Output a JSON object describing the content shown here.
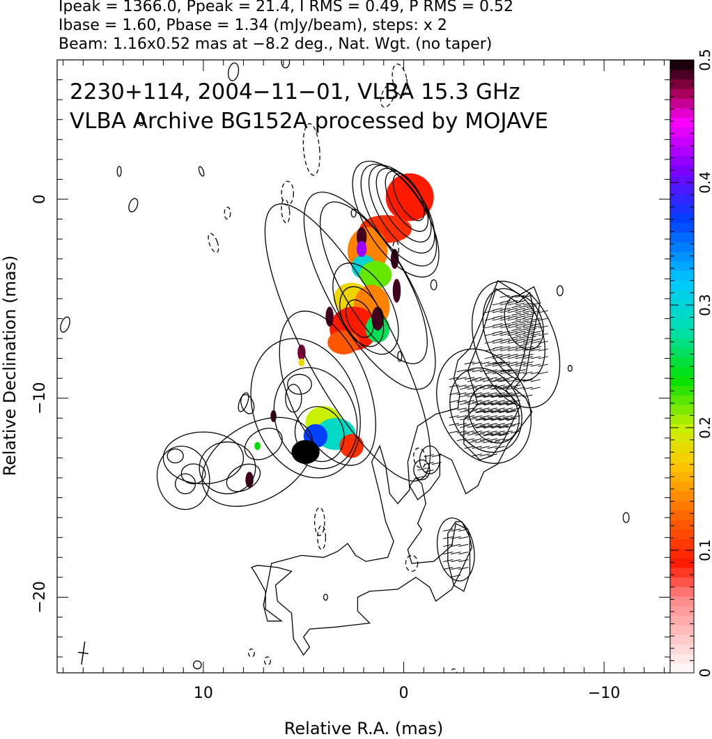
{
  "header": {
    "line1": "Ipeak = 1366.0, Ppeak = 21.4, I RMS = 0.49, P RMS = 0.52",
    "line2": "Ibase = 1.60, Pbase = 1.34 (mJy/beam), steps: x 2",
    "line3": "Beam: 1.16x0.52 mas at −8.2 deg., Nat. Wgt. (no taper)"
  },
  "chart_data": {
    "type": "heatmap",
    "title": "2230+114, 2004−11−01, VLBA 15.3 GHz",
    "subtitle": "VLBA Archive BG152A processed by MOJAVE",
    "xlabel": "Relative R.A. (mas)",
    "ylabel": "Relative Declination (mas)",
    "xlim": [
      17.3,
      -13.3
    ],
    "ylim": [
      -23.8,
      7.0
    ],
    "xticks": [
      {
        "v": 10,
        "label": "10"
      },
      {
        "v": 0,
        "label": "0"
      },
      {
        "v": -10,
        "label": "−10"
      }
    ],
    "yticks": [
      {
        "v": 0,
        "label": "0"
      },
      {
        "v": -10,
        "label": "−10"
      },
      {
        "v": -20,
        "label": "−20"
      }
    ],
    "colorbar": {
      "range": [
        0,
        0.5
      ],
      "ticks": [
        {
          "v": 0,
          "label": "0"
        },
        {
          "v": 0.1,
          "label": "0.1"
        },
        {
          "v": 0.2,
          "label": "0.2"
        },
        {
          "v": 0.3,
          "label": "0.3"
        },
        {
          "v": 0.4,
          "label": "0.4"
        },
        {
          "v": 0.5,
          "label": "0.5"
        }
      ],
      "stops": [
        {
          "v": 0.0,
          "color": "#ffffff"
        },
        {
          "v": 0.06,
          "color": "#ff8a8a"
        },
        {
          "v": 0.09,
          "color": "#ff1a00"
        },
        {
          "v": 0.13,
          "color": "#ff6a00"
        },
        {
          "v": 0.17,
          "color": "#ffc800"
        },
        {
          "v": 0.2,
          "color": "#c8f000"
        },
        {
          "v": 0.24,
          "color": "#00e000"
        },
        {
          "v": 0.28,
          "color": "#00e0b0"
        },
        {
          "v": 0.32,
          "color": "#00c8ff"
        },
        {
          "v": 0.37,
          "color": "#0040ff"
        },
        {
          "v": 0.41,
          "color": "#7a00ff"
        },
        {
          "v": 0.45,
          "color": "#ff00ff"
        },
        {
          "v": 0.475,
          "color": "#a0004a"
        },
        {
          "v": 0.5,
          "color": "#000000"
        }
      ]
    },
    "polarization_patches": [
      {
        "x": -0.3,
        "y": 0.1,
        "rx": 1.2,
        "ry": 1.2,
        "frac": 0.09
      },
      {
        "x": 0.9,
        "y": -1.5,
        "rx": 1.3,
        "ry": 0.7,
        "frac": 0.1
      },
      {
        "x": 1.8,
        "y": -2.6,
        "rx": 1.0,
        "ry": 1.2,
        "frac": 0.14
      },
      {
        "x": 2.0,
        "y": -3.4,
        "rx": 0.6,
        "ry": 0.6,
        "frac": 0.3
      },
      {
        "x": 1.4,
        "y": -3.8,
        "rx": 0.8,
        "ry": 0.7,
        "frac": 0.22
      },
      {
        "x": 2.6,
        "y": -5.0,
        "rx": 0.9,
        "ry": 0.8,
        "frac": 0.18
      },
      {
        "x": 1.6,
        "y": -5.4,
        "rx": 0.9,
        "ry": 1.1,
        "frac": 0.14
      },
      {
        "x": 2.5,
        "y": -6.5,
        "rx": 1.2,
        "ry": 1.1,
        "frac": 0.09
      },
      {
        "x": 1.3,
        "y": -6.5,
        "rx": 0.6,
        "ry": 0.7,
        "frac": 0.26
      },
      {
        "x": 3.0,
        "y": -7.2,
        "rx": 0.8,
        "ry": 0.6,
        "frac": 0.12
      },
      {
        "x": 4.0,
        "y": -11.2,
        "rx": 0.9,
        "ry": 0.8,
        "frac": 0.2
      },
      {
        "x": 3.4,
        "y": -11.8,
        "rx": 1.0,
        "ry": 0.8,
        "frac": 0.29
      },
      {
        "x": 4.4,
        "y": -11.9,
        "rx": 0.6,
        "ry": 0.6,
        "frac": 0.37
      },
      {
        "x": 4.9,
        "y": -12.7,
        "rx": 0.7,
        "ry": 0.6,
        "frac": 0.5
      },
      {
        "x": 2.6,
        "y": -12.4,
        "rx": 0.6,
        "ry": 0.6,
        "frac": 0.1
      },
      {
        "x": 2.1,
        "y": -1.9,
        "rx": 0.25,
        "ry": 0.5,
        "frac": 0.49
      },
      {
        "x": 2.1,
        "y": -2.5,
        "rx": 0.25,
        "ry": 0.4,
        "frac": 0.42
      },
      {
        "x": 1.3,
        "y": -6.0,
        "rx": 0.3,
        "ry": 0.6,
        "frac": 0.49
      },
      {
        "x": 0.35,
        "y": -4.6,
        "rx": 0.2,
        "ry": 0.6,
        "frac": 0.49
      },
      {
        "x": 0.45,
        "y": -3.0,
        "rx": 0.2,
        "ry": 0.5,
        "frac": 0.49
      },
      {
        "x": 3.7,
        "y": -5.9,
        "rx": 0.2,
        "ry": 0.5,
        "frac": 0.49
      },
      {
        "x": 5.1,
        "y": -7.7,
        "rx": 0.2,
        "ry": 0.4,
        "frac": 0.48
      },
      {
        "x": 6.5,
        "y": -10.9,
        "rx": 0.15,
        "ry": 0.3,
        "frac": 0.49
      },
      {
        "x": 7.7,
        "y": -14.1,
        "rx": 0.2,
        "ry": 0.4,
        "frac": 0.49
      },
      {
        "x": 7.3,
        "y": -12.4,
        "rx": 0.15,
        "ry": 0.2,
        "frac": 0.24
      },
      {
        "x": 5.1,
        "y": -8.2,
        "rx": 0.15,
        "ry": 0.2,
        "frac": 0.18
      }
    ],
    "jet_contours": [
      {
        "x": -0.25,
        "y": 0.1,
        "rx": 0.55,
        "ry": 1.3,
        "rot": -28,
        "level": 9
      },
      {
        "x": -0.15,
        "y": -0.1,
        "rx": 0.75,
        "ry": 1.7,
        "rot": -30,
        "level": 8
      },
      {
        "x": 0.0,
        "y": -0.3,
        "rx": 0.95,
        "ry": 2.1,
        "rot": -32,
        "level": 7
      },
      {
        "x": 0.1,
        "y": -0.5,
        "rx": 1.15,
        "ry": 2.5,
        "rot": -32,
        "level": 6
      },
      {
        "x": 0.25,
        "y": -0.8,
        "rx": 1.3,
        "ry": 2.9,
        "rot": -32,
        "level": 5
      },
      {
        "x": 0.4,
        "y": -1.0,
        "rx": 1.5,
        "ry": 3.3,
        "rot": -32,
        "level": 4
      },
      {
        "x": 2.2,
        "y": -6.0,
        "rx": 0.6,
        "ry": 1.0,
        "rot": -25,
        "level": 5
      },
      {
        "x": 2.1,
        "y": -5.9,
        "rx": 0.95,
        "ry": 1.6,
        "rot": -25,
        "level": 4
      },
      {
        "x": 1.9,
        "y": -5.5,
        "rx": 1.3,
        "ry": 2.5,
        "rot": -28,
        "level": 3
      },
      {
        "x": 1.5,
        "y": -4.2,
        "rx": 1.6,
        "ry": 4.6,
        "rot": -30,
        "level": 3
      },
      {
        "x": 1.7,
        "y": -4.6,
        "rx": 2.0,
        "ry": 5.6,
        "rot": -30,
        "level": 2
      },
      {
        "x": 2.8,
        "y": -7.2,
        "rx": 2.2,
        "ry": 7.8,
        "rot": -28,
        "level": 1
      },
      {
        "x": 3.8,
        "y": -9.5,
        "rx": 2.0,
        "ry": 4.1,
        "rot": -22,
        "level": 1
      },
      {
        "x": 4.4,
        "y": -11.0,
        "rx": 2.0,
        "ry": 2.6,
        "rot": -20,
        "level": 2
      },
      {
        "x": 4.2,
        "y": -11.8,
        "rx": 1.2,
        "ry": 1.4,
        "rot": -20,
        "level": 3
      },
      {
        "x": 4.9,
        "y": -10.5,
        "rx": 2.6,
        "ry": 3.6,
        "rot": -20,
        "level": 1
      },
      {
        "x": 5.2,
        "y": -9.3,
        "rx": 0.6,
        "ry": 0.5,
        "rot": 0,
        "level": 1
      },
      {
        "x": 5.5,
        "y": -10.0,
        "rx": 0.4,
        "ry": 0.7,
        "rot": 0,
        "level": 2
      },
      {
        "x": 7.3,
        "y": -13.2,
        "rx": 3.0,
        "ry": 1.9,
        "rot": -30,
        "level": 1
      },
      {
        "x": 8.8,
        "y": -13.5,
        "rx": 1.4,
        "ry": 1.3,
        "rot": 0,
        "level": 2
      },
      {
        "x": 10.0,
        "y": -13.0,
        "rx": 2.0,
        "ry": 1.3,
        "rot": 0,
        "level": 1
      },
      {
        "x": 10.5,
        "y": -13.8,
        "rx": 0.6,
        "ry": 0.5,
        "rot": 0,
        "level": 2
      },
      {
        "x": 11.0,
        "y": -14.0,
        "rx": 1.3,
        "ry": 1.6,
        "rot": -10,
        "level": 1
      },
      {
        "x": 10.9,
        "y": -14.3,
        "rx": 0.5,
        "ry": 0.5,
        "rot": 0,
        "level": 2
      },
      {
        "x": 11.4,
        "y": -12.9,
        "rx": 0.4,
        "ry": 0.35,
        "rot": 0,
        "level": 2
      },
      {
        "x": 8.0,
        "y": -14.0,
        "rx": 0.9,
        "ry": 0.6,
        "rot": -30,
        "level": 2
      },
      {
        "x": 7.0,
        "y": -12.3,
        "rx": 1.0,
        "ry": 0.7,
        "rot": -30,
        "level": 1
      },
      {
        "x": 7.8,
        "y": -10.3,
        "rx": 0.3,
        "ry": 0.5,
        "rot": -20,
        "level": 1
      }
    ],
    "polvec_regions": [
      {
        "x": -6.0,
        "y": -6.2,
        "rx": 0.9,
        "ry": 1.4,
        "rot": -20,
        "vec": [
          -5.4,
          -7.0
        ]
      },
      {
        "x": -5.5,
        "y": -6.8,
        "rx": 1.4,
        "ry": 2.4,
        "rot": -20,
        "vec": [
          -5.4,
          -7.0
        ]
      },
      {
        "x": -5.6,
        "y": -7.3,
        "rx": 2.0,
        "ry": 3.3,
        "rot": -20,
        "vec": [
          -5.3,
          -6.5
        ]
      },
      {
        "x": -4.5,
        "y": -10.8,
        "rx": 1.2,
        "ry": 1.5,
        "rot": -25,
        "vec": [
          -3.9,
          -11.7
        ]
      },
      {
        "x": -4.1,
        "y": -10.6,
        "rx": 1.7,
        "ry": 2.2,
        "rot": -25,
        "vec": [
          -3.9,
          -11.7
        ]
      },
      {
        "x": -4.0,
        "y": -10.4,
        "rx": 2.2,
        "ry": 3.0,
        "rot": -25,
        "vec": [
          -3.7,
          -10.2
        ]
      },
      {
        "x": -2.6,
        "y": -17.6,
        "rx": 0.9,
        "ry": 1.6,
        "rot": -10,
        "vec": [
          -2.2,
          -18.0
        ]
      },
      {
        "x": -1.3,
        "y": -13.1,
        "rx": 0.5,
        "ry": 0.7,
        "rot": 0,
        "vec": [
          -0.8,
          -12.7
        ]
      },
      {
        "x": -0.9,
        "y": -13.6,
        "rx": 0.4,
        "ry": 0.5,
        "rot": 0,
        "vec": [
          -0.9,
          -13.8
        ]
      }
    ],
    "outer_contour": "-4.7,-4.1 -5.8,-4.8 -6.5,-4.4 -6.8,-5.2 -6.3,-7.6 -6.1,-8.8 -5.5,-9.5 -6.1,-10.0 -6.4,-10.7 -5.2,-12.3 -4.7,-13.3 -4.0,-13.7 -3.7,-14.4 -3.1,-14.8 -2.4,-13.1 -1.8,-12.8 -1.8,-13.9 -1.3,-14.6 -0.7,-15.1 -0.3,-14.4 -0.6,-14.0 -0.9,-14.3 -1.1,-15.3 -0.7,-16.3 -0.9,-16.6 -0.2,-17.6 -0.4,-18.3 -1.5,-18.2 -2.4,-17.4 -2.6,-16.3 -3.2,-16.6 -3.4,-17.5 -2.9,-18.6 -2.4,-19.6 -1.6,-20.2 -1.3,-19.5 -0.6,-19.0 0.3,-19.6 1.7,-19.7 2.3,-20.0 2.3,-20.7 1.7,-21.3 3.4,-21.5 4.7,-21.6 5.0,-22.0 4.7,-22.5 5.0,-22.9 5.5,-22.1 5.6,-20.8 6.3,-20.2 6.4,-19.4 5.6,-18.7 6.3,-18.5 7.3,-18.4 7.6,-18.5 7.4,-18.8 6.9,-19.7 6.9,-20.6 6.1,-21.2 6.8,-21.2 7.0,-20.4 6.6,-18.3 5.1,-17.9 4.0,-18.0 3.3,-17.7 2.8,-17.3 2.4,-17.9 1.9,-18.2 0.8,-18.0 0.5,-17.2 0.9,-16.2 1.2,-14.8 1.6,-13.2 1.2,-12.4 0.9,-13.4 0.7,-14.8 0.3,-15.3 -0.3,-14.6 -0.2,-13.2 -0.7,-11.4 -1.6,-10.8 -2.7,-10.5 -2.8,-9.8 -2.5,-9.0 -2.7,-8.1 -3.3,-7.5 -3.8,-6.3 -4.2,-5.3",
    "outer_contour_2": "-2.6,-16.2 -2.2,-16.8 -2.2,-18.2 -2.5,-19.4 -3.0,-19.7 -3.3,-18.8 -3.3,-17.0 -2.9,-16.2",
    "outer_contour_3": "-4.6,-4.5 -5.7,-5.2 -6.3,-4.7 -6.5,-5.6 -6.0,-7.8 -5.7,-8.9 -5.1,-9.6 -5.8,-10.4 -5.0,-12.1 -4.4,-12.9 -3.8,-13.1 -3.0,-12.3 -3.0,-11.1 -3.7,-10.3 -3.2,-8.6 -3.9,-6.8",
    "dashed_contours": [
      {
        "x": 0.2,
        "y": 6.0,
        "rx": 0.35,
        "ry": 0.8,
        "rot": -10
      },
      {
        "x": 0.8,
        "y": 5.2,
        "rx": 0.3,
        "ry": 0.6,
        "rot": 20
      },
      {
        "x": 4.6,
        "y": 2.5,
        "rx": 0.4,
        "ry": 1.3,
        "rot": -5
      },
      {
        "x": 5.8,
        "y": 0.3,
        "rx": 0.3,
        "ry": 0.6,
        "rot": 0
      },
      {
        "x": 5.9,
        "y": -0.6,
        "rx": 0.2,
        "ry": 0.6,
        "rot": -5
      },
      {
        "x": 9.5,
        "y": -2.2,
        "rx": 0.2,
        "ry": 0.5,
        "rot": -20
      },
      {
        "x": 8.8,
        "y": -0.7,
        "rx": 0.15,
        "ry": 0.3,
        "rot": 0
      },
      {
        "x": 4.2,
        "y": -16.2,
        "rx": 0.25,
        "ry": 0.7,
        "rot": 0
      },
      {
        "x": 4.1,
        "y": -17.0,
        "rx": 0.2,
        "ry": 0.6,
        "rot": 0
      },
      {
        "x": 0.4,
        "y": -2.5,
        "rx": 0.15,
        "ry": 0.4,
        "rot": 0
      },
      {
        "x": -0.8,
        "y": -13.0,
        "rx": 0.3,
        "ry": 0.5,
        "rot": -10
      },
      {
        "x": -0.4,
        "y": -18.3,
        "rx": 0.3,
        "ry": 0.4,
        "rot": 0
      },
      {
        "x": 7.6,
        "y": -22.8,
        "rx": 0.15,
        "ry": 0.2,
        "rot": 0
      },
      {
        "x": 6.8,
        "y": -23.2,
        "rx": 0.15,
        "ry": 0.2,
        "rot": 0
      },
      {
        "x": -2.5,
        "y": -23.8,
        "rx": 0.15,
        "ry": 0.2,
        "rot": 0
      }
    ],
    "solid_blobs": [
      {
        "x": 8.5,
        "y": 6.4,
        "rx": 0.25,
        "ry": 0.45,
        "rot": 10
      },
      {
        "x": 5.9,
        "y": 6.9,
        "rx": 0.2,
        "ry": 0.3,
        "rot": 0
      },
      {
        "x": 13.1,
        "y": 4.0,
        "rx": 0.15,
        "ry": 0.3,
        "rot": 0
      },
      {
        "x": 14.2,
        "y": 1.4,
        "rx": 0.1,
        "ry": 0.25,
        "rot": 0
      },
      {
        "x": 10.1,
        "y": 1.4,
        "rx": 0.1,
        "ry": 0.25,
        "rot": -20
      },
      {
        "x": 13.5,
        "y": -0.3,
        "rx": 0.2,
        "ry": 0.35,
        "rot": 20
      },
      {
        "x": 2.5,
        "y": -0.7,
        "rx": 0.12,
        "ry": 0.2,
        "rot": 0
      },
      {
        "x": 16.9,
        "y": -6.3,
        "rx": 0.2,
        "ry": 0.4,
        "rot": 20
      },
      {
        "x": 8.0,
        "y": -10.2,
        "rx": 0.2,
        "ry": 0.5,
        "rot": 20
      },
      {
        "x": -1.5,
        "y": -4.3,
        "rx": 0.15,
        "ry": 0.25,
        "rot": 0
      },
      {
        "x": -7.8,
        "y": -4.6,
        "rx": 0.15,
        "ry": 0.25,
        "rot": 0
      },
      {
        "x": -8.3,
        "y": -8.5,
        "rx": 0.1,
        "ry": 0.15,
        "rot": 0
      },
      {
        "x": 0.2,
        "y": -7.9,
        "rx": 0.1,
        "ry": 0.25,
        "rot": 0
      },
      {
        "x": -11.1,
        "y": -16.0,
        "rx": 0.15,
        "ry": 0.25,
        "rot": 0
      },
      {
        "x": 3.9,
        "y": -20.0,
        "rx": 0.1,
        "ry": 0.15,
        "rot": 0
      },
      {
        "x": 10.3,
        "y": -23.4,
        "rx": 0.2,
        "ry": 0.2,
        "rot": 0
      }
    ],
    "beam": {
      "x": 16.0,
      "y": -22.8,
      "major": 1.16,
      "minor": 0.52,
      "pa_deg": -8.2
    }
  }
}
